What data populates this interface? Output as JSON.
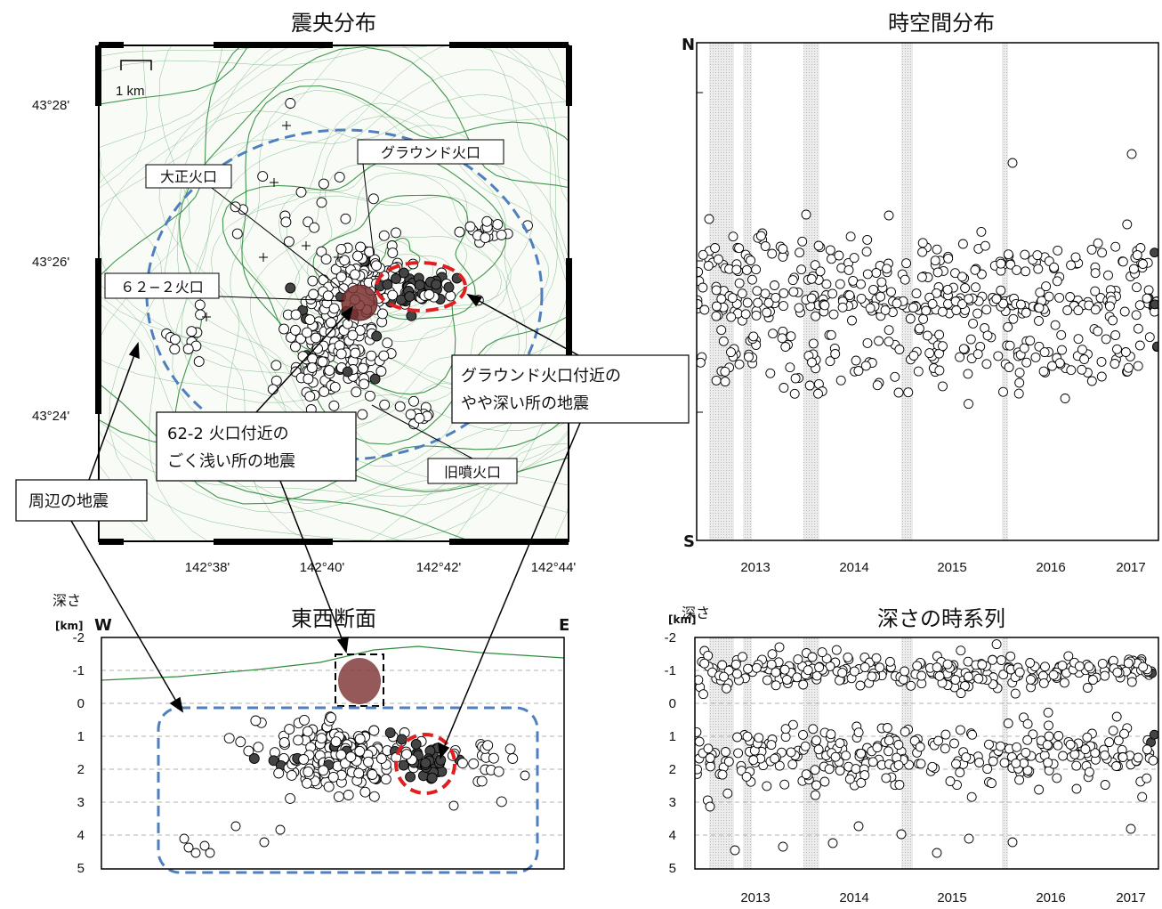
{
  "titles": {
    "epicenter": "震央分布",
    "spacetime": "時空間分布",
    "ew_section": "東西断面",
    "depth_series": "深さの時系列"
  },
  "map": {
    "lat_ticks": [
      "43°28'",
      "43°26'",
      "43°24'"
    ],
    "lon_ticks": [
      "142°38'",
      "142°40'",
      "142°42'",
      "142°44'"
    ],
    "scale_label": "1 km",
    "craters": {
      "taisho": "大正火口",
      "ground": "グラウンド火口",
      "c622": "６２−２火口",
      "old": "旧噴火口"
    }
  },
  "annotations": {
    "ground_deep_line1": "グラウンド火口付近の",
    "ground_deep_line2": "やや深い所の地震",
    "shallow_622_line1": "62-2 火口付近の",
    "shallow_622_line2": "ごく浅い所の地震",
    "surrounding": "周辺の地震"
  },
  "spacetime": {
    "north_label": "N",
    "south_label": "S",
    "years": [
      "2013",
      "2014",
      "2015",
      "2016",
      "2017"
    ]
  },
  "section": {
    "depth_label": "深さ",
    "unit_label": "[km]",
    "west_label": "W",
    "east_label": "E",
    "y_ticks": [
      "-2",
      "-1",
      "0",
      "1",
      "2",
      "3",
      "4",
      "5"
    ]
  },
  "depth_series": {
    "depth_label": "深さ",
    "unit_label": "[km]",
    "y_ticks": [
      "-2",
      "-1",
      "0",
      "1",
      "2",
      "3",
      "4",
      "5"
    ],
    "years": [
      "2013",
      "2014",
      "2015",
      "2016",
      "2017"
    ]
  },
  "colors": {
    "contour": "#2e8b3d",
    "blue_dash": "#4f7fbf",
    "red_dash": "#e02020",
    "shallow_fill": "#7a3030",
    "shade": "#d9d9d9"
  }
}
